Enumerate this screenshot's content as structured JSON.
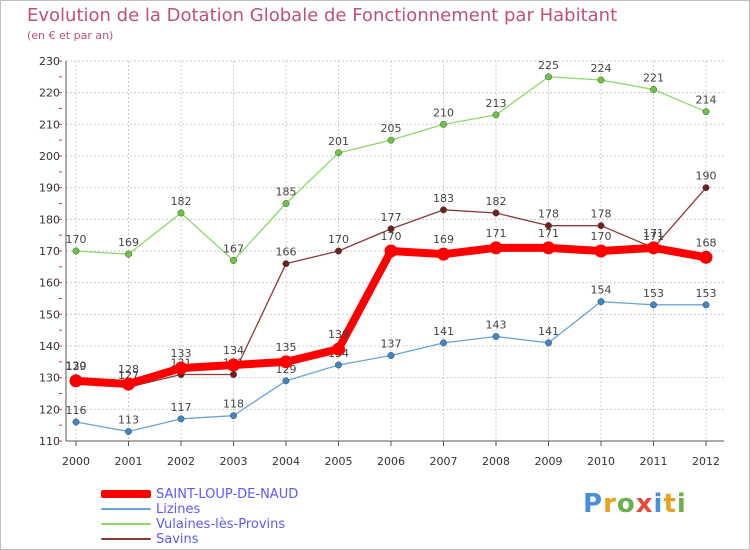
{
  "header": {
    "title": "Evolution de la Dotation Globale de Fonctionnement par Habitant",
    "subtitle": "(en € et par an)"
  },
  "logo": {
    "text": "Proxiti",
    "colors": [
      "#4a90d9",
      "#e8a020",
      "#6ab04c",
      "#e84a3a",
      "#4a90d9",
      "#e8a020",
      "#6ab04c"
    ]
  },
  "chart_data": {
    "type": "line",
    "x": [
      "2000",
      "2001",
      "2002",
      "2003",
      "2004",
      "2005",
      "2006",
      "2007",
      "2008",
      "2009",
      "2010",
      "2011",
      "2012"
    ],
    "ylim": [
      110,
      230
    ],
    "yticks": [
      110,
      120,
      130,
      140,
      150,
      160,
      170,
      180,
      190,
      200,
      210,
      220,
      230
    ],
    "grid": true,
    "legend": "bottom-left",
    "series": [
      {
        "name": "Vulaines-lès-Provins",
        "color": "#8fd86b",
        "point_color": "#6cc640",
        "values": [
          170,
          169,
          182,
          167,
          185,
          201,
          205,
          210,
          213,
          225,
          224,
          221,
          214
        ]
      },
      {
        "name": "Savins",
        "color": "#8b3a3a",
        "point_color": "#6e1f1f",
        "values": [
          130,
          127,
          131,
          131,
          166,
          170,
          177,
          183,
          182,
          178,
          178,
          171,
          190
        ]
      },
      {
        "name": "Lizines",
        "color": "#6aa4d6",
        "point_color": "#3f86c8",
        "values": [
          116,
          113,
          117,
          118,
          129,
          134,
          137,
          141,
          143,
          141,
          154,
          153,
          153
        ]
      },
      {
        "name": "SAINT-LOUP-DE-NAUD",
        "color": "#ff0000",
        "point_color": "#ff0000",
        "values": [
          129,
          128,
          133,
          134,
          135,
          139,
          170,
          169,
          171,
          171,
          170,
          171,
          168
        ]
      }
    ]
  }
}
